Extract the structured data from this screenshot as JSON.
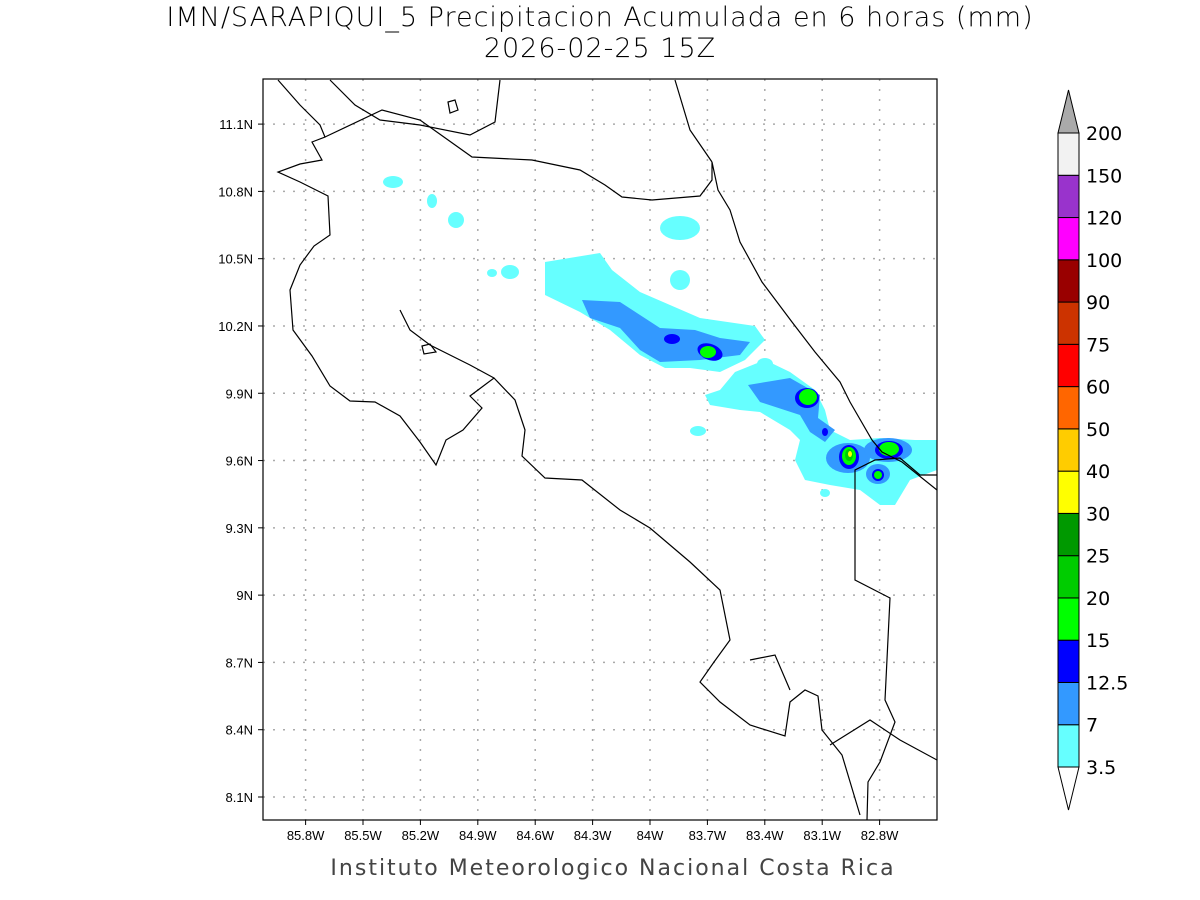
{
  "title": "IMN/SARAPIQUI_5 Precipitacion Acumulada en 6 horas (mm)",
  "subtitle": "2026-02-25 15Z",
  "footer": "Instituto Meteorologico Nacional Costa Rica",
  "map": {
    "lon_ticks": [
      "85.8W",
      "85.5W",
      "85.2W",
      "84.9W",
      "84.6W",
      "84.3W",
      "84W",
      "83.7W",
      "83.4W",
      "83.1W",
      "82.8W"
    ],
    "lat_ticks": [
      "11.1N",
      "10.8N",
      "10.5N",
      "10.2N",
      "9.9N",
      "9.6N",
      "9.3N",
      "9N",
      "8.7N",
      "8.4N",
      "8.1N"
    ],
    "lon_values": [
      -85.8,
      -85.5,
      -85.2,
      -84.9,
      -84.6,
      -84.3,
      -84.0,
      -83.7,
      -83.4,
      -83.1,
      -82.8
    ],
    "lat_values": [
      11.1,
      10.8,
      10.5,
      10.2,
      9.9,
      9.6,
      9.3,
      9.0,
      8.7,
      8.4,
      8.1
    ]
  },
  "colorbar": {
    "labels": [
      "3.5",
      "7",
      "12.5",
      "15",
      "20",
      "25",
      "30",
      "40",
      "50",
      "60",
      "75",
      "90",
      "100",
      "120",
      "150",
      "200"
    ],
    "colors": [
      "#66ffff",
      "#3399ff",
      "#0000ff",
      "#00ff00",
      "#00cc00",
      "#009900",
      "#ffff00",
      "#ffcc00",
      "#ff6600",
      "#ff0000",
      "#cc3300",
      "#990000",
      "#ff00ff",
      "#9933cc",
      "#f2f2f2"
    ],
    "over_color": "#aaaaaa"
  }
}
